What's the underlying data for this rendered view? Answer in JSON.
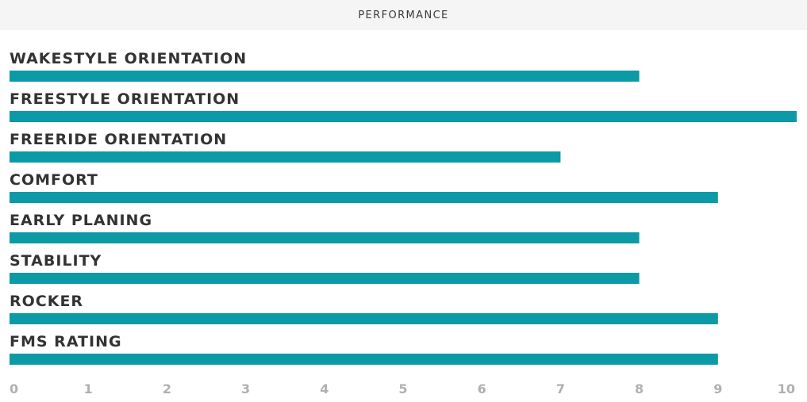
{
  "header": {
    "title": "PERFORMANCE"
  },
  "chart_data": {
    "type": "bar",
    "orientation": "horizontal",
    "title": "PERFORMANCE",
    "categories": [
      "WAKESTYLE ORIENTATION",
      "FREESTYLE ORIENTATION",
      "FREERIDE ORIENTATION",
      "COMFORT",
      "EARLY PLANING",
      "STABILITY",
      "ROCKER",
      "FMS RATING"
    ],
    "values": [
      8,
      10,
      7,
      9,
      8,
      8,
      9,
      9
    ],
    "xlim": [
      0,
      10
    ],
    "ticks": [
      "0",
      "1",
      "2",
      "3",
      "4",
      "5",
      "6",
      "7",
      "8",
      "9",
      "10"
    ],
    "grid": false,
    "legend": "none",
    "bar_color": "#0b9aa6"
  }
}
